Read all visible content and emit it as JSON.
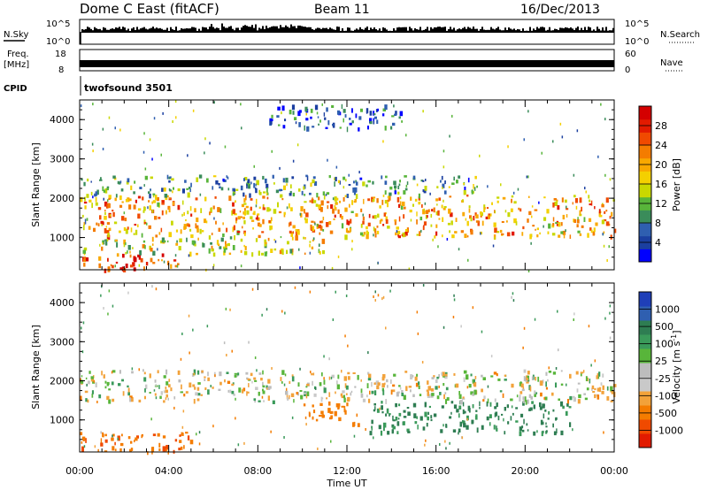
{
  "header": {
    "station": "Dome C East (fitACF)",
    "beam": "Beam 11",
    "date": "16/Dec/2013"
  },
  "strips": {
    "nsky_label": "N.Sky",
    "nsearch_label": "N.Search",
    "nsky_ticks": [
      "10^5",
      "10^0"
    ],
    "nsearch_ticks": [
      "10^5",
      "10^0"
    ],
    "freq_label": "Freq.",
    "freq_unit": "[MHz]",
    "freq_ticks": [
      "18",
      "8"
    ],
    "nave_label": "Nave",
    "nave_ticks": [
      "60",
      "0"
    ],
    "cpid_label": "CPID",
    "cpid_value": "twofsound 3501"
  },
  "chart_data": [
    {
      "type": "heatmap",
      "panel": "power",
      "xlabel": "Time UT",
      "ylabel": "Slant Range [km]",
      "x_range": [
        "00:00",
        "24:00"
      ],
      "ylim": [
        180,
        4500
      ],
      "yticks": [
        1000,
        2000,
        3000,
        4000
      ],
      "colorbar": {
        "label": "Power [dB]",
        "ticks": [
          4,
          8,
          12,
          16,
          20,
          24,
          28
        ],
        "colors": [
          "#0000ff",
          "#1b3fa0",
          "#2f5fb0",
          "#3a8c5a",
          "#58b53a",
          "#c9d800",
          "#f4d000",
          "#f9a800",
          "#f47c00",
          "#f04a00",
          "#e21b00",
          "#d40000"
        ]
      },
      "bands": [
        {
          "range_km": [
            200,
            600
          ],
          "time_h": [
            0,
            4.5
          ],
          "value_db": 26
        },
        {
          "range_km": [
            600,
            1050
          ],
          "time_h": [
            0,
            11
          ],
          "value_db": 16
        },
        {
          "range_km": [
            1050,
            2100
          ],
          "time_h": [
            0,
            24
          ],
          "value_db": 20
        },
        {
          "range_km": [
            2100,
            2600
          ],
          "time_h": [
            0,
            18
          ],
          "value_db": 10
        },
        {
          "range_km": [
            3800,
            4400
          ],
          "time_h": [
            8.5,
            14.5
          ],
          "value_db": 6
        }
      ]
    },
    {
      "type": "heatmap",
      "panel": "velocity",
      "xlabel": "Time UT",
      "ylabel": "Slant Range [km]",
      "x_range": [
        "00:00",
        "24:00"
      ],
      "xticks": [
        "00:00",
        "04:00",
        "08:00",
        "12:00",
        "16:00",
        "20:00",
        "00:00"
      ],
      "ylim": [
        180,
        4500
      ],
      "yticks": [
        1000,
        2000,
        3000,
        4000
      ],
      "colorbar": {
        "label": "Velocity [m s^-1]",
        "ticks": [
          "1000",
          "500",
          "100",
          "25",
          "-25",
          "-100",
          "-500",
          "-1000"
        ],
        "colors": [
          "#1f3fb8",
          "#2f5fb0",
          "#2e7d52",
          "#3a9a5a",
          "#58b53a",
          "#bdbdbd",
          "#c9c9c9",
          "#f2a23a",
          "#f47c00",
          "#f04a00",
          "#e21b00"
        ]
      },
      "bands": [
        {
          "range_km": [
            200,
            700
          ],
          "time_h": [
            0,
            5
          ],
          "value_ms": -400
        },
        {
          "range_km": [
            700,
            1500
          ],
          "time_h": [
            13,
            22
          ],
          "value_ms": 300
        },
        {
          "range_km": [
            1500,
            2300
          ],
          "time_h": [
            0,
            24
          ],
          "value_ms": 0
        },
        {
          "range_km": [
            900,
            1500
          ],
          "time_h": [
            10,
            12.5
          ],
          "value_ms": -300
        }
      ]
    }
  ]
}
